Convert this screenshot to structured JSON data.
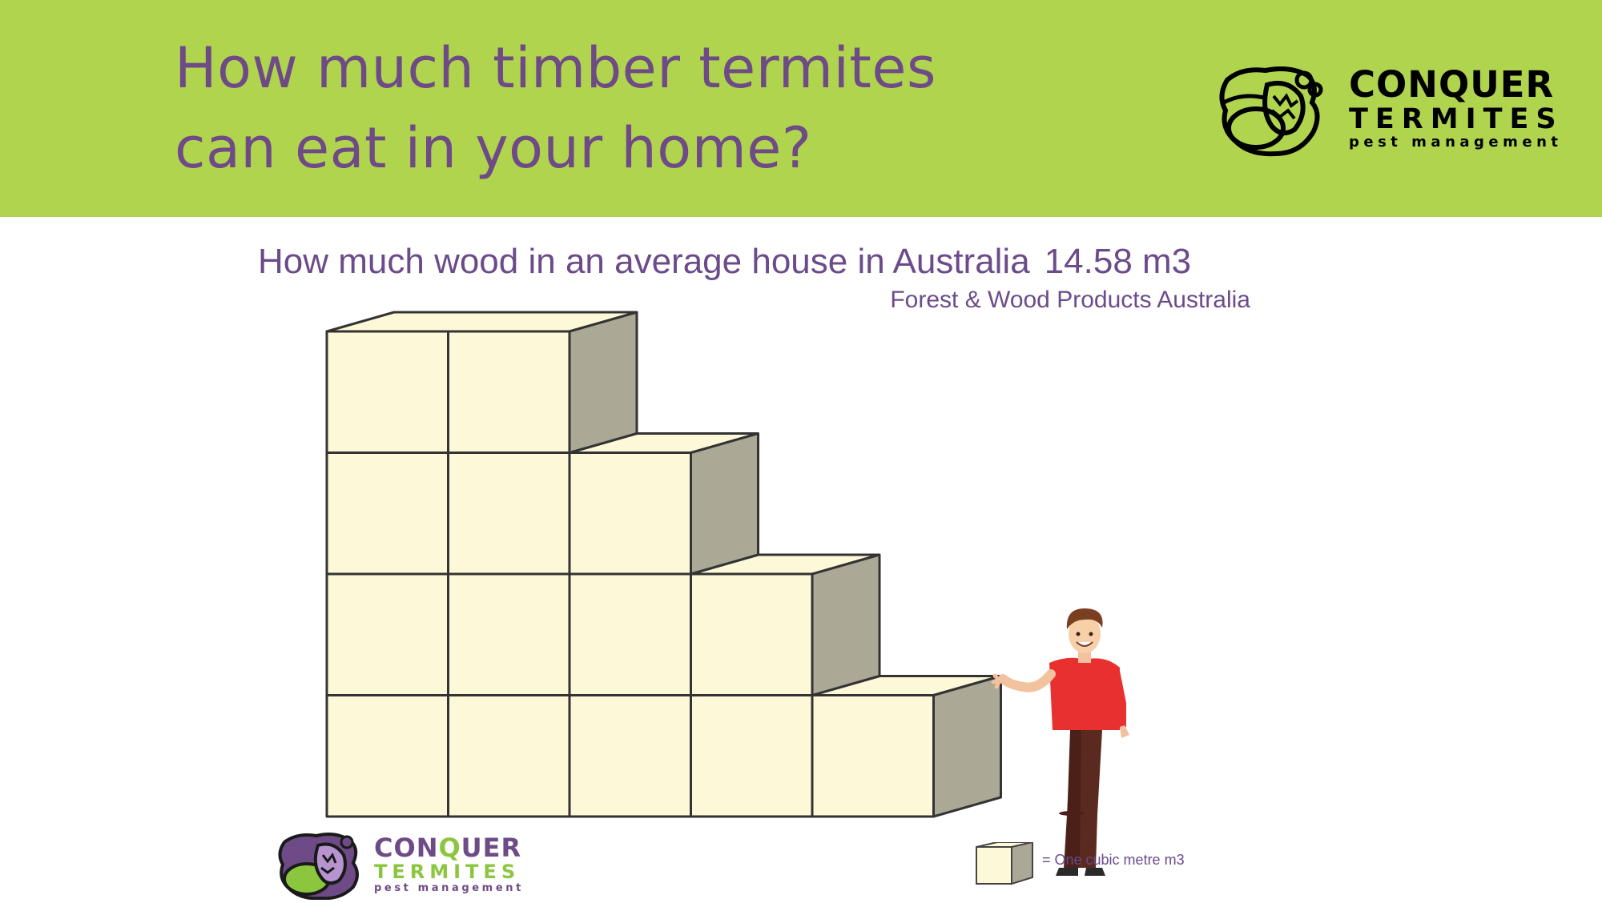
{
  "header": {
    "title_line1": "How much timber termites",
    "title_line2": "can eat in your home?",
    "background_color": "#b0d44e",
    "title_color": "#6e4a86",
    "logo": {
      "line1": "CONQUER",
      "line2": "TERMITES",
      "line3": "pest management",
      "icon": "termite-logo-icon"
    }
  },
  "diagram": {
    "title": "How much wood in an average house in Australia",
    "value": "14.58 m3",
    "source": "Forest & Wood Products Australia",
    "rows_bottom_to_top": [
      5,
      4,
      3,
      2
    ],
    "cube_face_color": "#fdf9d8",
    "cube_side_color": "#aba995",
    "figure": "person-illustration"
  },
  "legend": {
    "label": "= One cubic metre m3",
    "icon": "cube-icon"
  },
  "footer_logo": {
    "line1_a": "CON",
    "line1_q": "Q",
    "line1_b": "UER",
    "line2": "TERMITES",
    "line3": "pest management",
    "primary_color": "#6e4a86",
    "accent_color": "#8cc63f",
    "icon": "termite-logo-icon"
  }
}
